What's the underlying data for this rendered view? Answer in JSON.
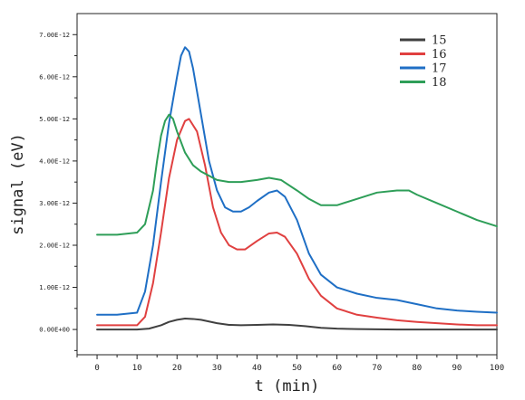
{
  "chart_data": {
    "type": "line",
    "xlabel": "t (min)",
    "ylabel": "signal (eV)",
    "xlim": [
      -5,
      100
    ],
    "ylim": [
      -6e-13,
      7.5e-12
    ],
    "x_ticks": [
      "0",
      "10",
      "20",
      "30",
      "40",
      "50",
      "60",
      "70",
      "80",
      "90",
      "100"
    ],
    "y_ticks": [
      {
        "value": 0,
        "label": "0.00E+00"
      },
      {
        "value": 1e-12,
        "label": "1.00E-12"
      },
      {
        "value": 2e-12,
        "label": "2.00E-12"
      },
      {
        "value": 3e-12,
        "label": "3.00E-12"
      },
      {
        "value": 4e-12,
        "label": "4.00E-12"
      },
      {
        "value": 5e-12,
        "label": "5.00E-12"
      },
      {
        "value": 6e-12,
        "label": "6.00E-12"
      },
      {
        "value": 7e-12,
        "label": "7.00E-12"
      }
    ],
    "grid": false,
    "legend_position": "top-right",
    "series": [
      {
        "name": "15",
        "color": "#404040",
        "x": [
          0,
          5,
          10,
          13,
          16,
          18,
          20,
          22,
          24,
          26,
          28,
          30,
          33,
          36,
          40,
          44,
          48,
          52,
          56,
          60,
          65,
          70,
          75,
          80,
          85,
          90,
          95,
          100
        ],
        "y": [
          0,
          0,
          0,
          2e-14,
          1e-13,
          1.8e-13,
          2.3e-13,
          2.6e-13,
          2.5e-13,
          2.3e-13,
          1.9e-13,
          1.5e-13,
          1.1e-13,
          1e-13,
          1.1e-13,
          1.2e-13,
          1.1e-13,
          8e-14,
          4e-14,
          2e-14,
          1e-14,
          5e-15,
          0,
          0,
          0,
          0,
          0,
          0
        ]
      },
      {
        "name": "16",
        "color": "#e04040",
        "x": [
          0,
          5,
          10,
          12,
          14,
          16,
          18,
          20,
          22,
          23,
          25,
          27,
          29,
          31,
          33,
          35,
          37,
          40,
          43,
          45,
          47,
          50,
          53,
          56,
          60,
          65,
          70,
          75,
          80,
          85,
          90,
          95,
          100
        ],
        "y": [
          1e-13,
          1e-13,
          1e-13,
          3e-13,
          1.1e-12,
          2.3e-12,
          3.6e-12,
          4.5e-12,
          4.95e-12,
          5e-12,
          4.7e-12,
          3.9e-12,
          2.9e-12,
          2.3e-12,
          2e-12,
          1.9e-12,
          1.9e-12,
          2.1e-12,
          2.28e-12,
          2.3e-12,
          2.2e-12,
          1.8e-12,
          1.2e-12,
          8e-13,
          5e-13,
          3.5e-13,
          2.8e-13,
          2.2e-13,
          1.8e-13,
          1.5e-13,
          1.2e-13,
          1e-13,
          1e-13
        ]
      },
      {
        "name": "17",
        "color": "#1f6fc5",
        "x": [
          0,
          5,
          10,
          12,
          14,
          16,
          18,
          20,
          21,
          22,
          23,
          24,
          26,
          28,
          30,
          32,
          34,
          36,
          38,
          40,
          43,
          45,
          47,
          50,
          53,
          56,
          60,
          65,
          70,
          75,
          80,
          85,
          90,
          95,
          100
        ],
        "y": [
          3.5e-13,
          3.5e-13,
          4e-13,
          9e-13,
          2e-12,
          3.5e-12,
          4.9e-12,
          6e-12,
          6.5e-12,
          6.7e-12,
          6.6e-12,
          6.2e-12,
          5.1e-12,
          4e-12,
          3.3e-12,
          2.9e-12,
          2.8e-12,
          2.8e-12,
          2.9e-12,
          3.05e-12,
          3.25e-12,
          3.3e-12,
          3.15e-12,
          2.6e-12,
          1.8e-12,
          1.3e-12,
          1e-12,
          8.5e-13,
          7.5e-13,
          7e-13,
          6e-13,
          5e-13,
          4.5e-13,
          4.2e-13,
          4e-13
        ]
      },
      {
        "name": "18",
        "color": "#2e9e58",
        "x": [
          0,
          5,
          10,
          12,
          14,
          15,
          16,
          17,
          18,
          19,
          20,
          22,
          24,
          26,
          28,
          30,
          33,
          36,
          40,
          43,
          46,
          50,
          53,
          56,
          60,
          65,
          70,
          75,
          78,
          80,
          85,
          90,
          95,
          100
        ],
        "y": [
          2.25e-12,
          2.25e-12,
          2.3e-12,
          2.5e-12,
          3.3e-12,
          4e-12,
          4.6e-12,
          4.95e-12,
          5.1e-12,
          5e-12,
          4.7e-12,
          4.2e-12,
          3.9e-12,
          3.75e-12,
          3.65e-12,
          3.55e-12,
          3.5e-12,
          3.5e-12,
          3.55e-12,
          3.6e-12,
          3.55e-12,
          3.3e-12,
          3.1e-12,
          2.95e-12,
          2.95e-12,
          3.1e-12,
          3.25e-12,
          3.3e-12,
          3.3e-12,
          3.2e-12,
          3e-12,
          2.8e-12,
          2.6e-12,
          2.45e-12
        ]
      }
    ]
  }
}
